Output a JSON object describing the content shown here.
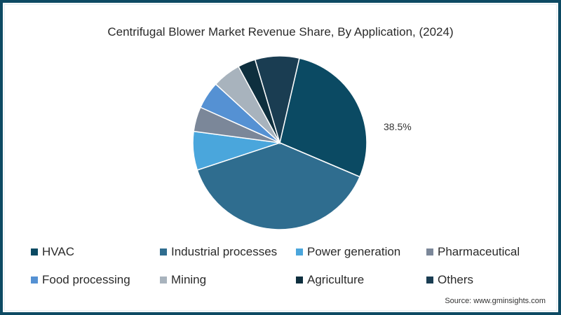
{
  "chart_data": {
    "type": "pie",
    "title": "Centrifugal Blower Market Revenue Share, By Application, (2024)",
    "categories": [
      "HVAC",
      "Industrial processes",
      "Power generation",
      "Pharmaceutical",
      "Food processing",
      "Mining",
      "Agriculture",
      "Others"
    ],
    "values": [
      27.8,
      38.5,
      7.2,
      4.6,
      5.1,
      5.3,
      3.3,
      8.2
    ],
    "colors": [
      "#0b4a63",
      "#2f6d8f",
      "#4aa6dc",
      "#7b8799",
      "#5591d3",
      "#a8b3bd",
      "#0e2f3e",
      "#1a3d52"
    ],
    "annotations": [
      {
        "category": "Industrial processes",
        "text": "38.5%"
      }
    ],
    "legend_position": "bottom",
    "start_angle_deg": 13
  },
  "title": "Centrifugal Blower Market Revenue Share, By Application, (2024)",
  "slice_label": "38.5%",
  "legend": [
    {
      "label": "HVAC",
      "color": "#0b4a63"
    },
    {
      "label": "Industrial processes",
      "color": "#2f6d8f"
    },
    {
      "label": "Power generation",
      "color": "#4aa6dc"
    },
    {
      "label": "Pharmaceutical",
      "color": "#7b8799"
    },
    {
      "label": "Food processing",
      "color": "#5591d3"
    },
    {
      "label": "Mining",
      "color": "#a8b3bd"
    },
    {
      "label": "Agriculture",
      "color": "#0e2f3e"
    },
    {
      "label": "Others",
      "color": "#1a3d52"
    }
  ],
  "source": "Source: www.gminsights.com"
}
